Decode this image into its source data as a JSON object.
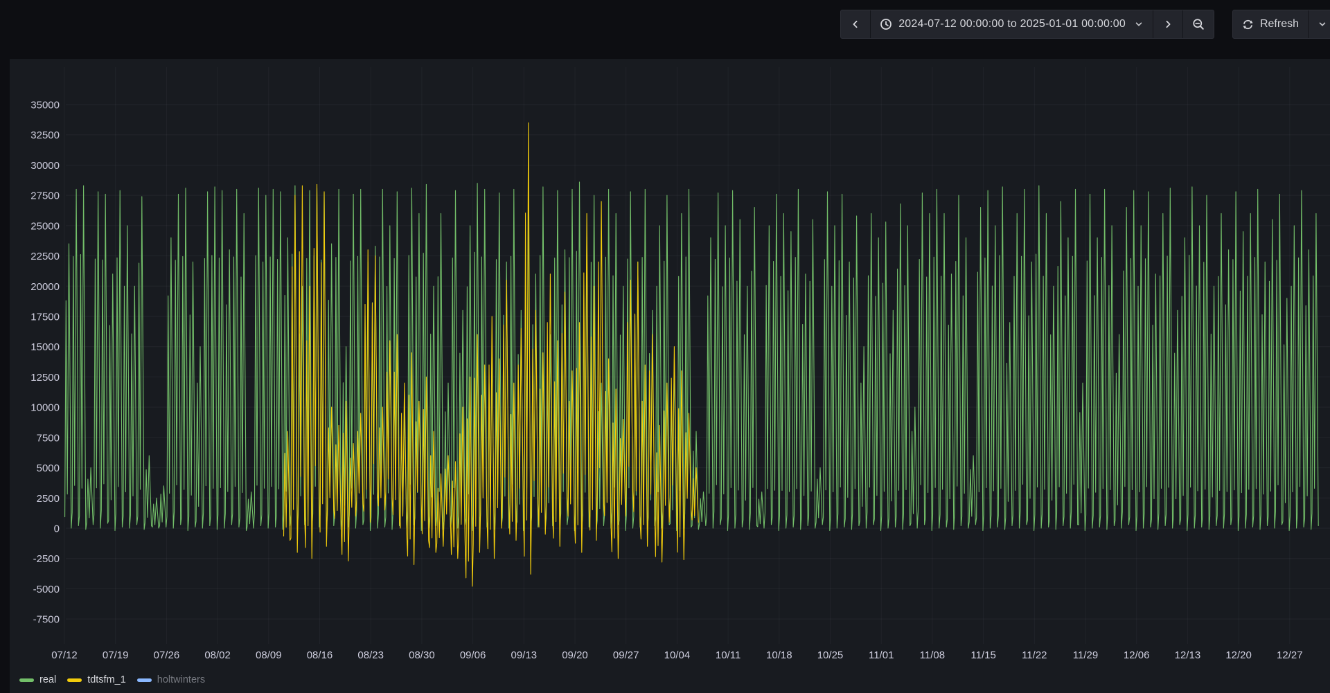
{
  "toolbar": {
    "time_range": "2024-07-12 00:00:00 to 2025-01-01 00:00:00",
    "refresh_label": "Refresh",
    "icons": {
      "back": "chevron-left",
      "time_picker": "clock",
      "time_dropdown": "chevron-down",
      "forward": "chevron-right",
      "zoom_out": "magnifier-minus",
      "refresh": "sync",
      "refresh_dropdown": "chevron-down"
    }
  },
  "chart_data": {
    "type": "line",
    "title": "",
    "xlabel": "",
    "ylabel": "",
    "grid": true,
    "legend_position": "bottom-left",
    "ylim": [
      -7500,
      35000
    ],
    "y_tick_step": 2500,
    "y_ticks": [
      35000,
      32500,
      30000,
      27500,
      25000,
      22500,
      20000,
      17500,
      15000,
      12500,
      10000,
      7500,
      5000,
      2500,
      0,
      -2500,
      -5000,
      -7500
    ],
    "x_ticks": [
      "07/12",
      "07/19",
      "07/26",
      "08/02",
      "08/09",
      "08/16",
      "08/23",
      "08/30",
      "09/06",
      "09/13",
      "09/20",
      "09/27",
      "10/04",
      "10/11",
      "10/18",
      "10/25",
      "11/01",
      "11/08",
      "11/15",
      "11/22",
      "11/29",
      "12/06",
      "12/13",
      "12/20",
      "12/27"
    ],
    "x_tick_interval_days": 7,
    "x_range_days": 172,
    "series": [
      {
        "name": "real",
        "color": "#73bf69",
        "hidden": false,
        "start_day": 0,
        "daily_peak_trough": [
          [
            23500,
            0
          ],
          [
            28000,
            200
          ],
          [
            28300,
            -100
          ],
          [
            5000,
            300
          ],
          [
            27800,
            0
          ],
          [
            27600,
            400
          ],
          [
            21000,
            -200
          ],
          [
            27900,
            100
          ],
          [
            25000,
            0
          ],
          [
            20000,
            300
          ],
          [
            27400,
            -100
          ],
          [
            6000,
            200
          ],
          [
            2500,
            0
          ],
          [
            3500,
            100
          ],
          [
            24000,
            0
          ],
          [
            27600,
            300
          ],
          [
            28100,
            -200
          ],
          [
            22000,
            100
          ],
          [
            15000,
            0
          ],
          [
            27800,
            200
          ],
          [
            28200,
            -100
          ],
          [
            27900,
            0
          ],
          [
            23000,
            300
          ],
          [
            28000,
            100
          ],
          [
            26000,
            -200
          ],
          [
            3000,
            0
          ],
          [
            28100,
            200
          ],
          [
            27500,
            0
          ],
          [
            28000,
            100
          ],
          [
            27800,
            -100
          ],
          [
            24000,
            200
          ],
          [
            28300,
            0
          ],
          [
            20000,
            300
          ],
          [
            27900,
            -200
          ],
          [
            28100,
            100
          ],
          [
            27700,
            0
          ],
          [
            23500,
            200
          ],
          [
            28000,
            -100
          ],
          [
            15000,
            100
          ],
          [
            27600,
            0
          ],
          [
            28000,
            300
          ],
          [
            22000,
            -200
          ],
          [
            23300,
            0
          ],
          [
            28000,
            100
          ],
          [
            25000,
            -100
          ],
          [
            27800,
            200
          ],
          [
            10000,
            0
          ],
          [
            28100,
            300
          ],
          [
            26000,
            -200
          ],
          [
            28400,
            0
          ],
          [
            20000,
            200
          ],
          [
            26000,
            -100
          ],
          [
            12000,
            100
          ],
          [
            27900,
            0
          ],
          [
            18000,
            300
          ],
          [
            25000,
            -200
          ],
          [
            28500,
            0
          ],
          [
            28000,
            100
          ],
          [
            15000,
            -100
          ],
          [
            27700,
            200
          ],
          [
            22000,
            0
          ],
          [
            28000,
            300
          ],
          [
            18000,
            -200
          ],
          [
            27500,
            0
          ],
          [
            21000,
            100
          ],
          [
            28200,
            -100
          ],
          [
            16000,
            200
          ],
          [
            27900,
            0
          ],
          [
            23000,
            300
          ],
          [
            28000,
            -200
          ],
          [
            28600,
            0
          ],
          [
            24000,
            100
          ],
          [
            27500,
            -100
          ],
          [
            12000,
            200
          ],
          [
            28000,
            0
          ],
          [
            26000,
            300
          ],
          [
            20000,
            -200
          ],
          [
            27800,
            0
          ],
          [
            22000,
            100
          ],
          [
            28000,
            -100
          ],
          [
            18000,
            200
          ],
          [
            25000,
            0
          ],
          [
            27500,
            300
          ],
          [
            14000,
            -200
          ],
          [
            26000,
            0
          ],
          [
            28000,
            100
          ],
          [
            8000,
            -100
          ],
          [
            3000,
            200
          ],
          [
            24000,
            0
          ],
          [
            27700,
            300
          ],
          [
            25000,
            -200
          ],
          [
            27900,
            0
          ],
          [
            25500,
            100
          ],
          [
            20000,
            -100
          ],
          [
            26500,
            200
          ],
          [
            3000,
            0
          ],
          [
            25000,
            300
          ],
          [
            27600,
            -200
          ],
          [
            26000,
            0
          ],
          [
            24500,
            100
          ],
          [
            28000,
            -100
          ],
          [
            21000,
            200
          ],
          [
            25500,
            0
          ],
          [
            5000,
            300
          ],
          [
            27800,
            -200
          ],
          [
            25000,
            0
          ],
          [
            27600,
            100
          ],
          [
            22000,
            -100
          ],
          [
            25800,
            200
          ],
          [
            15000,
            0
          ],
          [
            26000,
            300
          ],
          [
            24000,
            -200
          ],
          [
            25300,
            0
          ],
          [
            18000,
            100
          ],
          [
            26800,
            -100
          ],
          [
            25000,
            200
          ],
          [
            10000,
            0
          ],
          [
            27700,
            300
          ],
          [
            26000,
            -200
          ],
          [
            28000,
            0
          ],
          [
            26000,
            100
          ],
          [
            21000,
            -100
          ],
          [
            27500,
            200
          ],
          [
            24000,
            0
          ],
          [
            6000,
            300
          ],
          [
            26500,
            -200
          ],
          [
            27900,
            0
          ],
          [
            25000,
            100
          ],
          [
            28200,
            -100
          ],
          [
            17000,
            200
          ],
          [
            26000,
            0
          ],
          [
            28000,
            300
          ],
          [
            22000,
            -200
          ],
          [
            28300,
            0
          ],
          [
            26000,
            100
          ],
          [
            20000,
            -100
          ],
          [
            27000,
            200
          ],
          [
            24000,
            0
          ],
          [
            28000,
            300
          ],
          [
            12000,
            -200
          ],
          [
            27600,
            0
          ],
          [
            24000,
            100
          ],
          [
            28000,
            -100
          ],
          [
            25000,
            200
          ],
          [
            16000,
            0
          ],
          [
            26500,
            300
          ],
          [
            27900,
            -200
          ],
          [
            25000,
            0
          ],
          [
            27800,
            100
          ],
          [
            21000,
            -100
          ],
          [
            26000,
            200
          ],
          [
            28100,
            0
          ],
          [
            18000,
            300
          ],
          [
            24000,
            -200
          ],
          [
            28200,
            0
          ],
          [
            25000,
            100
          ],
          [
            27500,
            -100
          ],
          [
            20000,
            200
          ],
          [
            26000,
            0
          ],
          [
            23000,
            300
          ],
          [
            27800,
            -200
          ],
          [
            24500,
            0
          ],
          [
            26000,
            100
          ],
          [
            28000,
            -100
          ],
          [
            22000,
            200
          ],
          [
            25500,
            0
          ],
          [
            27600,
            300
          ],
          [
            19000,
            -200
          ],
          [
            25000,
            0
          ],
          [
            27900,
            100
          ],
          [
            23000,
            -100
          ],
          [
            26000,
            200
          ]
        ]
      },
      {
        "name": "tdtsfm_1",
        "color": "#f2cc0c",
        "hidden": false,
        "start_day": 30,
        "daily_peak_trough": [
          [
            8000,
            -1000
          ],
          [
            27500,
            -2000
          ],
          [
            28300,
            1000
          ],
          [
            20000,
            -2500
          ],
          [
            28400,
            2000
          ],
          [
            27800,
            -1500
          ],
          [
            10000,
            1500
          ],
          [
            8500,
            500
          ],
          [
            10500,
            -2700
          ],
          [
            7000,
            1000
          ],
          [
            9500,
            2000
          ],
          [
            23000,
            500
          ],
          [
            22500,
            3000
          ],
          [
            10000,
            1500
          ],
          [
            15500,
            2500
          ],
          [
            16000,
            500
          ],
          [
            12000,
            -500
          ],
          [
            14500,
            -3000
          ],
          [
            10500,
            2000
          ],
          [
            12500,
            -1000
          ],
          [
            8000,
            -2000
          ],
          [
            4500,
            -1500
          ],
          [
            6000,
            500
          ],
          [
            5500,
            -2500
          ],
          [
            10000,
            -1000
          ],
          [
            12500,
            -4800
          ],
          [
            16000,
            -2000
          ],
          [
            13500,
            1000
          ],
          [
            17500,
            -2500
          ],
          [
            14000,
            0
          ],
          [
            20500,
            2000
          ],
          [
            12000,
            -1000
          ],
          [
            16500,
            1500
          ],
          [
            33500,
            -3800
          ],
          [
            18000,
            2000
          ],
          [
            14500,
            -500
          ],
          [
            21000,
            1000
          ],
          [
            15500,
            -1500
          ],
          [
            19500,
            2500
          ],
          [
            13000,
            500
          ],
          [
            17000,
            -2000
          ],
          [
            26000,
            1500
          ],
          [
            20000,
            -1000
          ],
          [
            27000,
            2000
          ],
          [
            14000,
            500
          ],
          [
            11500,
            -2500
          ],
          [
            9000,
            1000
          ],
          [
            20500,
            3000
          ],
          [
            22000,
            500
          ],
          [
            13500,
            -1500
          ],
          [
            16000,
            1000
          ],
          [
            8500,
            -2800
          ],
          [
            12000,
            500
          ],
          [
            15000,
            2000
          ],
          [
            13000,
            -2600
          ],
          [
            9500,
            1500
          ],
          [
            5000,
            500
          ]
        ]
      },
      {
        "name": "holtwinters",
        "color": "#8ab8ff",
        "hidden": true,
        "start_day": 0,
        "daily_peak_trough": []
      }
    ]
  }
}
